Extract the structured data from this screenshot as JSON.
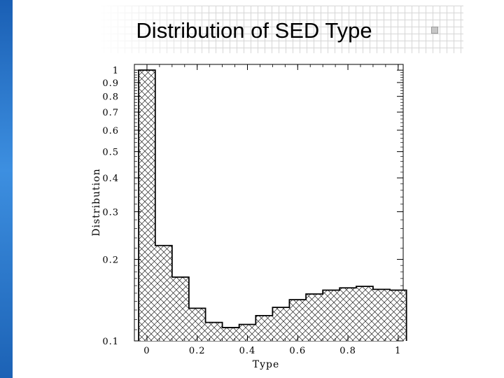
{
  "slide": {
    "title": "Distribution of SED Type"
  },
  "chart_data": {
    "type": "bar",
    "subtype": "histogram",
    "xlabel": "Type",
    "ylabel": "Distribution",
    "xlim": [
      -0.05,
      1.02
    ],
    "ylim": [
      0.1,
      1.05
    ],
    "yscale": "log",
    "grid": false,
    "legend": "none",
    "bin_width": 0.067,
    "bin_edges": [
      -0.033,
      0.033,
      0.1,
      0.167,
      0.233,
      0.3,
      0.367,
      0.433,
      0.5,
      0.567,
      0.633,
      0.7,
      0.767,
      0.833,
      0.9,
      0.967,
      1.033
    ],
    "values": [
      1.0,
      0.225,
      0.172,
      0.132,
      0.117,
      0.112,
      0.115,
      0.124,
      0.133,
      0.142,
      0.149,
      0.154,
      0.157,
      0.159,
      0.155,
      0.154
    ],
    "x_ticks": [
      {
        "v": 0,
        "label": "0"
      },
      {
        "v": 0.2,
        "label": "0.2"
      },
      {
        "v": 0.4,
        "label": "0.4"
      },
      {
        "v": 0.6,
        "label": "0.6"
      },
      {
        "v": 0.8,
        "label": "0.8"
      },
      {
        "v": 1.0,
        "label": "1"
      }
    ],
    "y_ticks": [
      {
        "v": 0.1,
        "label": "0.1"
      },
      {
        "v": 0.2,
        "label": "0.2"
      },
      {
        "v": 0.3,
        "label": "0.3"
      },
      {
        "v": 0.4,
        "label": "0.4"
      },
      {
        "v": 0.5,
        "label": "0.5"
      },
      {
        "v": 0.6,
        "label": "0.6"
      },
      {
        "v": 0.7,
        "label": "0.7"
      },
      {
        "v": 0.8,
        "label": "0.8"
      },
      {
        "v": 0.9,
        "label": "0.9"
      },
      {
        "v": 1.0,
        "label": "1"
      }
    ],
    "bar_fill": "cross-hatched",
    "colors": {
      "bars": "#000000",
      "background": "#ffffff"
    }
  }
}
